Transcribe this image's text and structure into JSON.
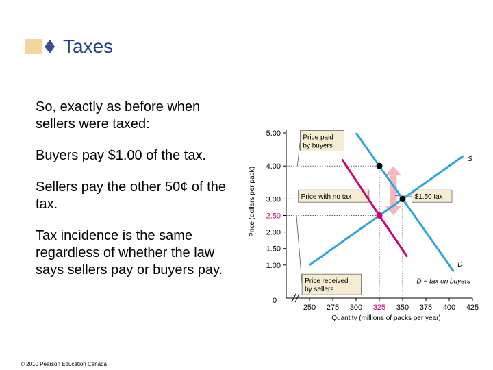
{
  "slide": {
    "title": "Taxes",
    "paragraphs": [
      "So, exactly as before when sellers were taxed:",
      "Buyers pay $1.00 of the tax.",
      "Sellers pay the other 50¢ of the tax.",
      "Tax incidence is the same regardless of whether the law says sellers pay or buyers pay."
    ],
    "copyright": "© 2010 Pearson Education Canada"
  },
  "colors": {
    "title": "#1f3f88",
    "supply": "#2aa6d8",
    "demand": "#2aa6d8",
    "demand_tax": "#d0006f",
    "tax_arrow": "#f4b6c2",
    "callout_bg": "#f6ecd2",
    "title_deco": "#f2d69b"
  },
  "chart_data": {
    "type": "line",
    "xlabel": "Quantity (millions of packs per year)",
    "ylabel": "Price (dollars per pack)",
    "xlim": [
      225,
      425
    ],
    "ylim": [
      0,
      5.0
    ],
    "x_ticks": [
      {
        "value": 250,
        "label": "250"
      },
      {
        "value": 275,
        "label": "275"
      },
      {
        "value": 300,
        "label": "300"
      },
      {
        "value": 325,
        "label": "325",
        "highlight": true
      },
      {
        "value": 350,
        "label": "350"
      },
      {
        "value": 375,
        "label": "375"
      },
      {
        "value": 400,
        "label": "400"
      },
      {
        "value": 425,
        "label": "425"
      }
    ],
    "x_origin_label": "0",
    "y_ticks": [
      {
        "value": 1.0,
        "label": "1.00"
      },
      {
        "value": 1.5,
        "label": "1.50"
      },
      {
        "value": 2.0,
        "label": "2.00"
      },
      {
        "value": 2.5,
        "label": "2.50",
        "highlight": true
      },
      {
        "value": 3.0,
        "label": "3.00"
      },
      {
        "value": 4.0,
        "label": "4.00"
      },
      {
        "value": 5.0,
        "label": "5.00"
      }
    ],
    "series": [
      {
        "name": "S",
        "color_key": "supply",
        "points": [
          [
            250,
            1.0
          ],
          [
            375,
            3.5
          ],
          [
            415,
            4.3
          ]
        ],
        "label_at": [
          420,
          4.15
        ]
      },
      {
        "name": "D",
        "color_key": "demand",
        "points": [
          [
            300,
            5.0
          ],
          [
            350,
            3.0
          ],
          [
            405,
            0.8
          ]
        ],
        "label_at": [
          409,
          0.95
        ]
      },
      {
        "name": "D − tax on buyers",
        "color_key": "demand_tax",
        "points": [
          [
            285,
            4.2
          ],
          [
            325,
            2.5
          ],
          [
            355,
            1.25
          ]
        ],
        "label_at": [
          365,
          0.45
        ]
      }
    ],
    "points": [
      {
        "x": 350,
        "y": 3.0,
        "color": "#000000"
      },
      {
        "x": 325,
        "y": 4.0,
        "color": "#000000"
      },
      {
        "x": 325,
        "y": 2.5,
        "color": "#d0006f"
      }
    ],
    "guides": [
      {
        "from": [
          325,
          0
        ],
        "to": [
          325,
          4.0
        ]
      },
      {
        "from": [
          225,
          4.0
        ],
        "to": [
          325,
          4.0
        ]
      },
      {
        "from": [
          225,
          2.5
        ],
        "to": [
          325,
          2.5
        ]
      },
      {
        "from": [
          350,
          0
        ],
        "to": [
          350,
          3.0
        ]
      },
      {
        "from": [
          225,
          3.0
        ],
        "to": [
          350,
          3.0
        ]
      }
    ],
    "tax_arrow": {
      "x": 340,
      "from": 2.5,
      "to": 4.0
    },
    "callouts": [
      {
        "text": [
          "Price paid",
          "by buyers"
        ],
        "box": [
          240,
          4.45
        ],
        "point": [
          237,
          4.0
        ]
      },
      {
        "text": [
          "Price with no tax"
        ],
        "box": [
          238,
          2.9
        ],
        "point": [
          313,
          3.0
        ]
      },
      {
        "text": [
          "$1.50 tax"
        ],
        "box": [
          360,
          2.9
        ],
        "point": [
          342,
          3.1
        ]
      },
      {
        "text": [
          "Price received",
          "by sellers"
        ],
        "box": [
          242,
          0.1
        ],
        "point": [
          236,
          2.5
        ]
      }
    ]
  }
}
